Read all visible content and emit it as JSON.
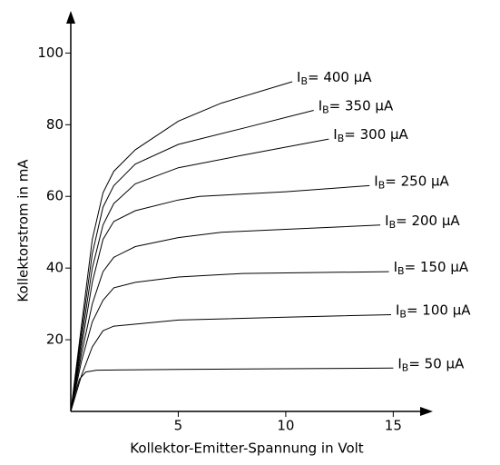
{
  "chart_data": {
    "type": "line",
    "xlabel": "Kollektor-Emitter-Spannung in Volt",
    "ylabel": "Kollektorstrom in mA",
    "xlim": [
      0,
      16.8
    ],
    "ylim": [
      0,
      111
    ],
    "xticks": [
      5,
      10,
      15
    ],
    "yticks": [
      20,
      40,
      60,
      80,
      100
    ],
    "color": "#000000",
    "series": [
      {
        "name": "IB= 400 µA",
        "x": [
          0,
          0.5,
          1,
          1.5,
          2,
          3,
          5,
          7,
          10.3
        ],
        "values": [
          0,
          24,
          48,
          61,
          67,
          73,
          81,
          86,
          92
        ]
      },
      {
        "name": "IB= 350 µA",
        "x": [
          0,
          0.5,
          1,
          1.5,
          2,
          3,
          5,
          8,
          11.3
        ],
        "values": [
          0,
          22,
          44,
          57,
          63,
          69,
          74.5,
          79,
          84
        ]
      },
      {
        "name": "IB= 300 µA",
        "x": [
          0,
          0.5,
          1,
          1.5,
          2,
          3,
          5,
          8,
          12
        ],
        "values": [
          0,
          20,
          40,
          52,
          58,
          63.5,
          68,
          71.5,
          76
        ]
      },
      {
        "name": "IB= 250 µA",
        "x": [
          0,
          0.5,
          1,
          1.5,
          2,
          3,
          5,
          6,
          10,
          13.9
        ],
        "values": [
          0,
          18,
          36,
          48,
          53,
          56,
          59,
          60,
          61.3,
          63
        ]
      },
      {
        "name": "IB= 200 µA",
        "x": [
          0,
          0.5,
          1,
          1.5,
          2,
          3,
          5,
          7,
          10,
          14.4
        ],
        "values": [
          0,
          16,
          30,
          39,
          43,
          46,
          48.5,
          50,
          50.8,
          52
        ]
      },
      {
        "name": "IB= 150 µA",
        "x": [
          0,
          0.5,
          1,
          1.5,
          2,
          3,
          5,
          8,
          14.8
        ],
        "values": [
          0,
          14,
          25,
          31,
          34.5,
          36,
          37.5,
          38.5,
          39
        ]
      },
      {
        "name": "IB= 100 µA",
        "x": [
          0,
          0.5,
          1,
          1.5,
          2,
          5,
          10,
          14.9
        ],
        "values": [
          0,
          10,
          18,
          22.5,
          23.8,
          25.5,
          26.3,
          27
        ]
      },
      {
        "name": "IB= 50 µA",
        "x": [
          0,
          0.2,
          0.4,
          0.7,
          1.2,
          5,
          10,
          15
        ],
        "values": [
          0,
          5,
          9,
          11,
          11.5,
          11.7,
          11.9,
          12.1
        ]
      }
    ]
  }
}
